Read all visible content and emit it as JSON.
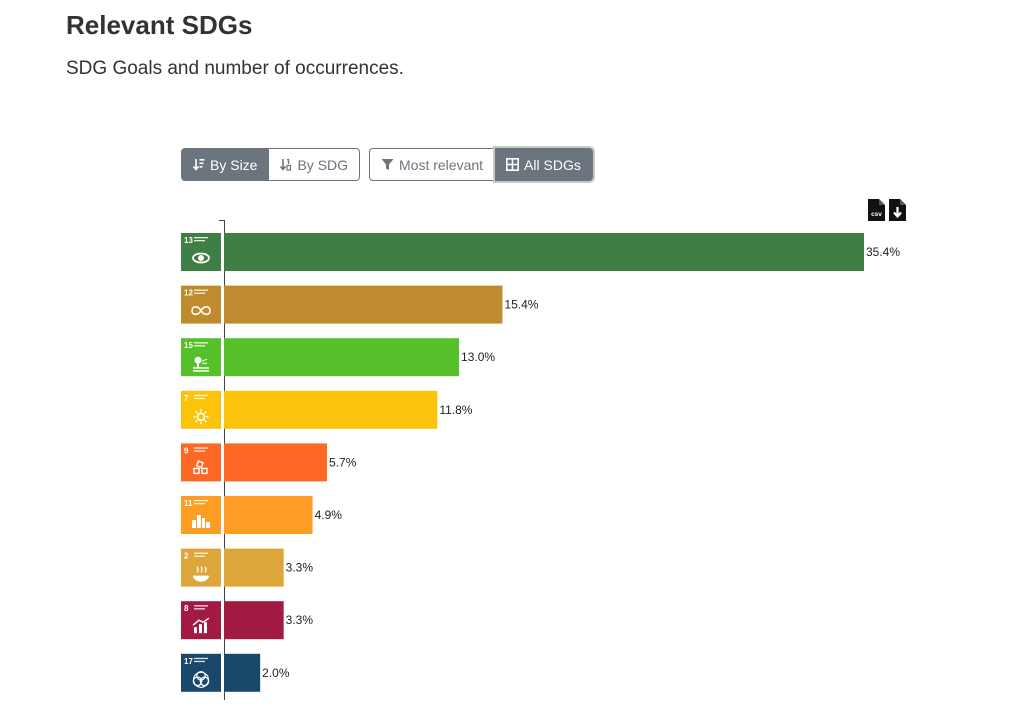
{
  "header": {
    "title": "Relevant SDGs",
    "subtitle": "SDG Goals and number of occurrences."
  },
  "controls": {
    "sort": [
      {
        "label": "By Size",
        "active": true,
        "icon": "sort-size-icon"
      },
      {
        "label": "By SDG",
        "active": false,
        "icon": "sort-number-icon"
      }
    ],
    "filter": [
      {
        "label": "Most relevant",
        "active": false,
        "icon": "filter-icon"
      },
      {
        "label": "All SDGs",
        "active": true,
        "icon": "grid-icon"
      }
    ],
    "downloads": [
      {
        "icon": "csv-file-icon",
        "label": "csv"
      },
      {
        "icon": "file-download-icon"
      }
    ]
  },
  "chart_data": {
    "type": "bar",
    "orientation": "horizontal",
    "title": "",
    "xlabel": "",
    "ylabel": "",
    "xlim": [
      0,
      35.4
    ],
    "categories": [
      "13",
      "12",
      "15",
      "7",
      "9",
      "11",
      "2",
      "8",
      "17"
    ],
    "values": [
      35.4,
      15.4,
      13.0,
      11.8,
      5.7,
      4.9,
      3.3,
      3.3,
      2.0
    ],
    "labels": [
      "35.4%",
      "15.4%",
      "13.0%",
      "11.8%",
      "5.7%",
      "4.9%",
      "3.3%",
      "3.3%",
      "2.0%"
    ],
    "colors": [
      "#3f7e44",
      "#bf8b2e",
      "#56c02b",
      "#fcc30b",
      "#fd6925",
      "#fd9d24",
      "#dda63a",
      "#a21942",
      "#19486a"
    ],
    "sdg_icons": [
      "climate-action-icon",
      "responsible-consumption-icon",
      "life-on-land-icon",
      "affordable-clean-energy-icon",
      "industry-innovation-icon",
      "sustainable-cities-icon",
      "zero-hunger-icon",
      "decent-work-icon",
      "partnerships-icon"
    ]
  }
}
